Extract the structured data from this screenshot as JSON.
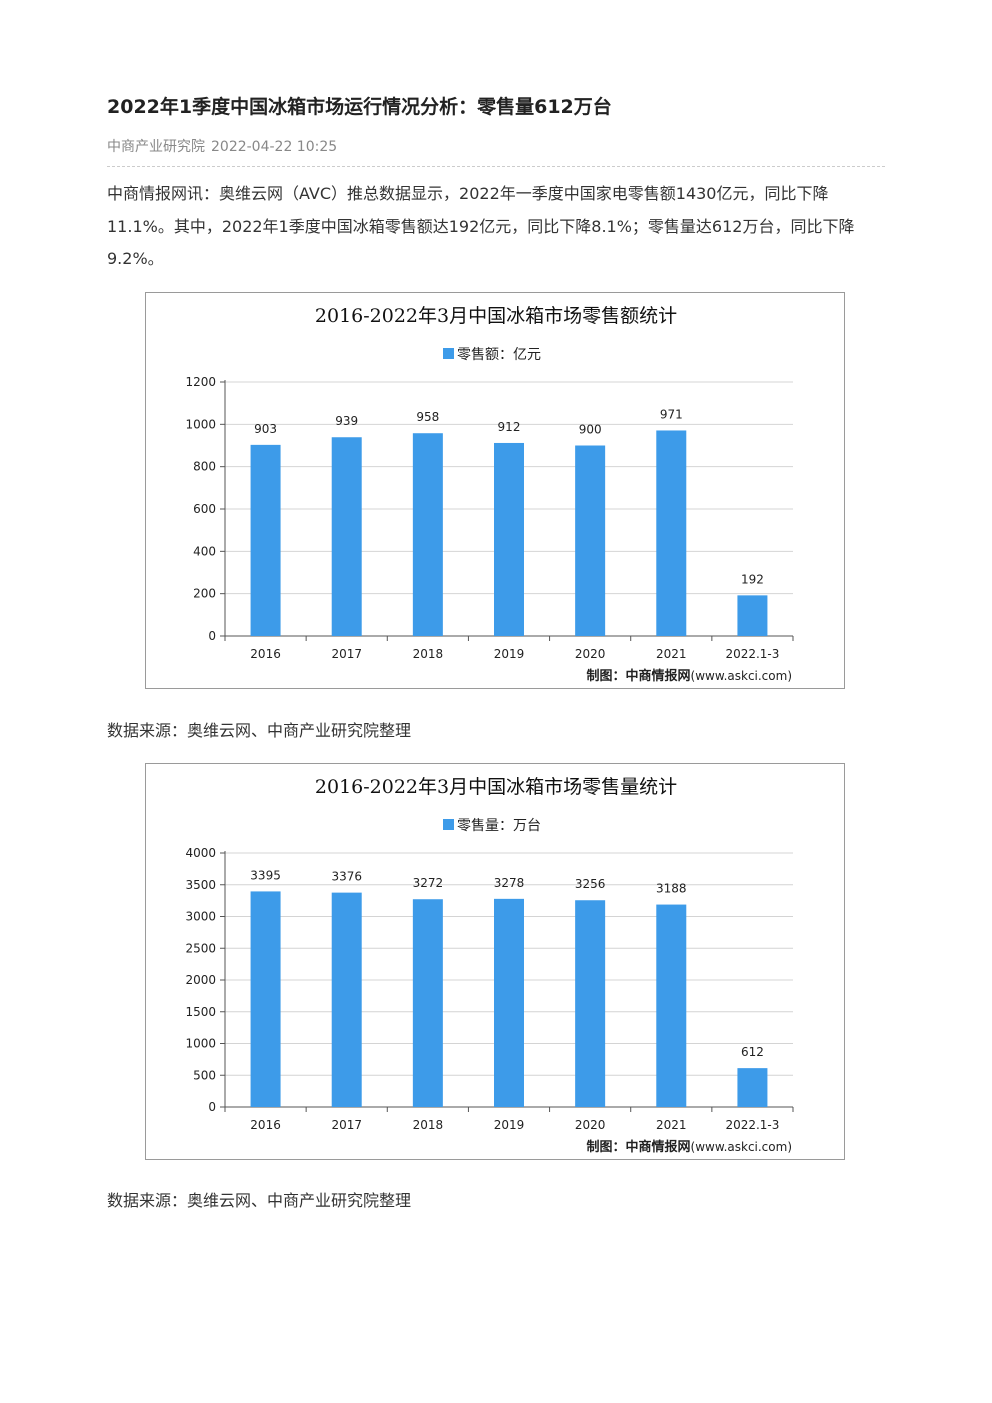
{
  "article": {
    "title": "2022年1季度中国冰箱市场运行情况分析：零售量612万台",
    "source_name": "中商产业研究院",
    "date": "2022-04-22 10:25",
    "paragraph": "中商情报网讯：奥维云网（AVC）推总数据显示，2022年一季度中国家电零售额1430亿元，同比下降11.1%。其中，2022年1季度中国冰箱零售额达192亿元，同比下降8.1%；零售量达612万台，同比下降9.2%。",
    "source_note_1": "数据来源：奥维云网、中商产业研究院整理",
    "source_note_2": "数据来源：奥维云网、中商产业研究院整理"
  },
  "chart_data": [
    {
      "type": "bar",
      "title": "2016-2022年3月中国冰箱市场零售额统计",
      "legend": "零售额：亿元",
      "categories": [
        "2016",
        "2017",
        "2018",
        "2019",
        "2020",
        "2021",
        "2022.1-3"
      ],
      "values": [
        903,
        939,
        958,
        912,
        900,
        971,
        192
      ],
      "ylim": [
        0,
        1200
      ],
      "yticks": [
        0,
        200,
        400,
        600,
        800,
        1000,
        1200
      ],
      "bar_color": "#3d9be9",
      "grid": true,
      "legend_position": "top-center",
      "credit_prefix": "制图：",
      "credit_brand": "中商情报网",
      "credit_url": "(www.askci.com)"
    },
    {
      "type": "bar",
      "title": "2016-2022年3月中国冰箱市场零售量统计",
      "legend": "零售量：万台",
      "categories": [
        "2016",
        "2017",
        "2018",
        "2019",
        "2020",
        "2021",
        "2022.1-3"
      ],
      "values": [
        3395,
        3376,
        3272,
        3278,
        3256,
        3188,
        612
      ],
      "ylim": [
        0,
        4000
      ],
      "yticks": [
        0,
        500,
        1000,
        1500,
        2000,
        2500,
        3000,
        3500,
        4000
      ],
      "bar_color": "#3d9be9",
      "grid": true,
      "legend_position": "top-center",
      "credit_prefix": "制图：",
      "credit_brand": "中商情报网",
      "credit_url": "(www.askci.com)"
    }
  ]
}
